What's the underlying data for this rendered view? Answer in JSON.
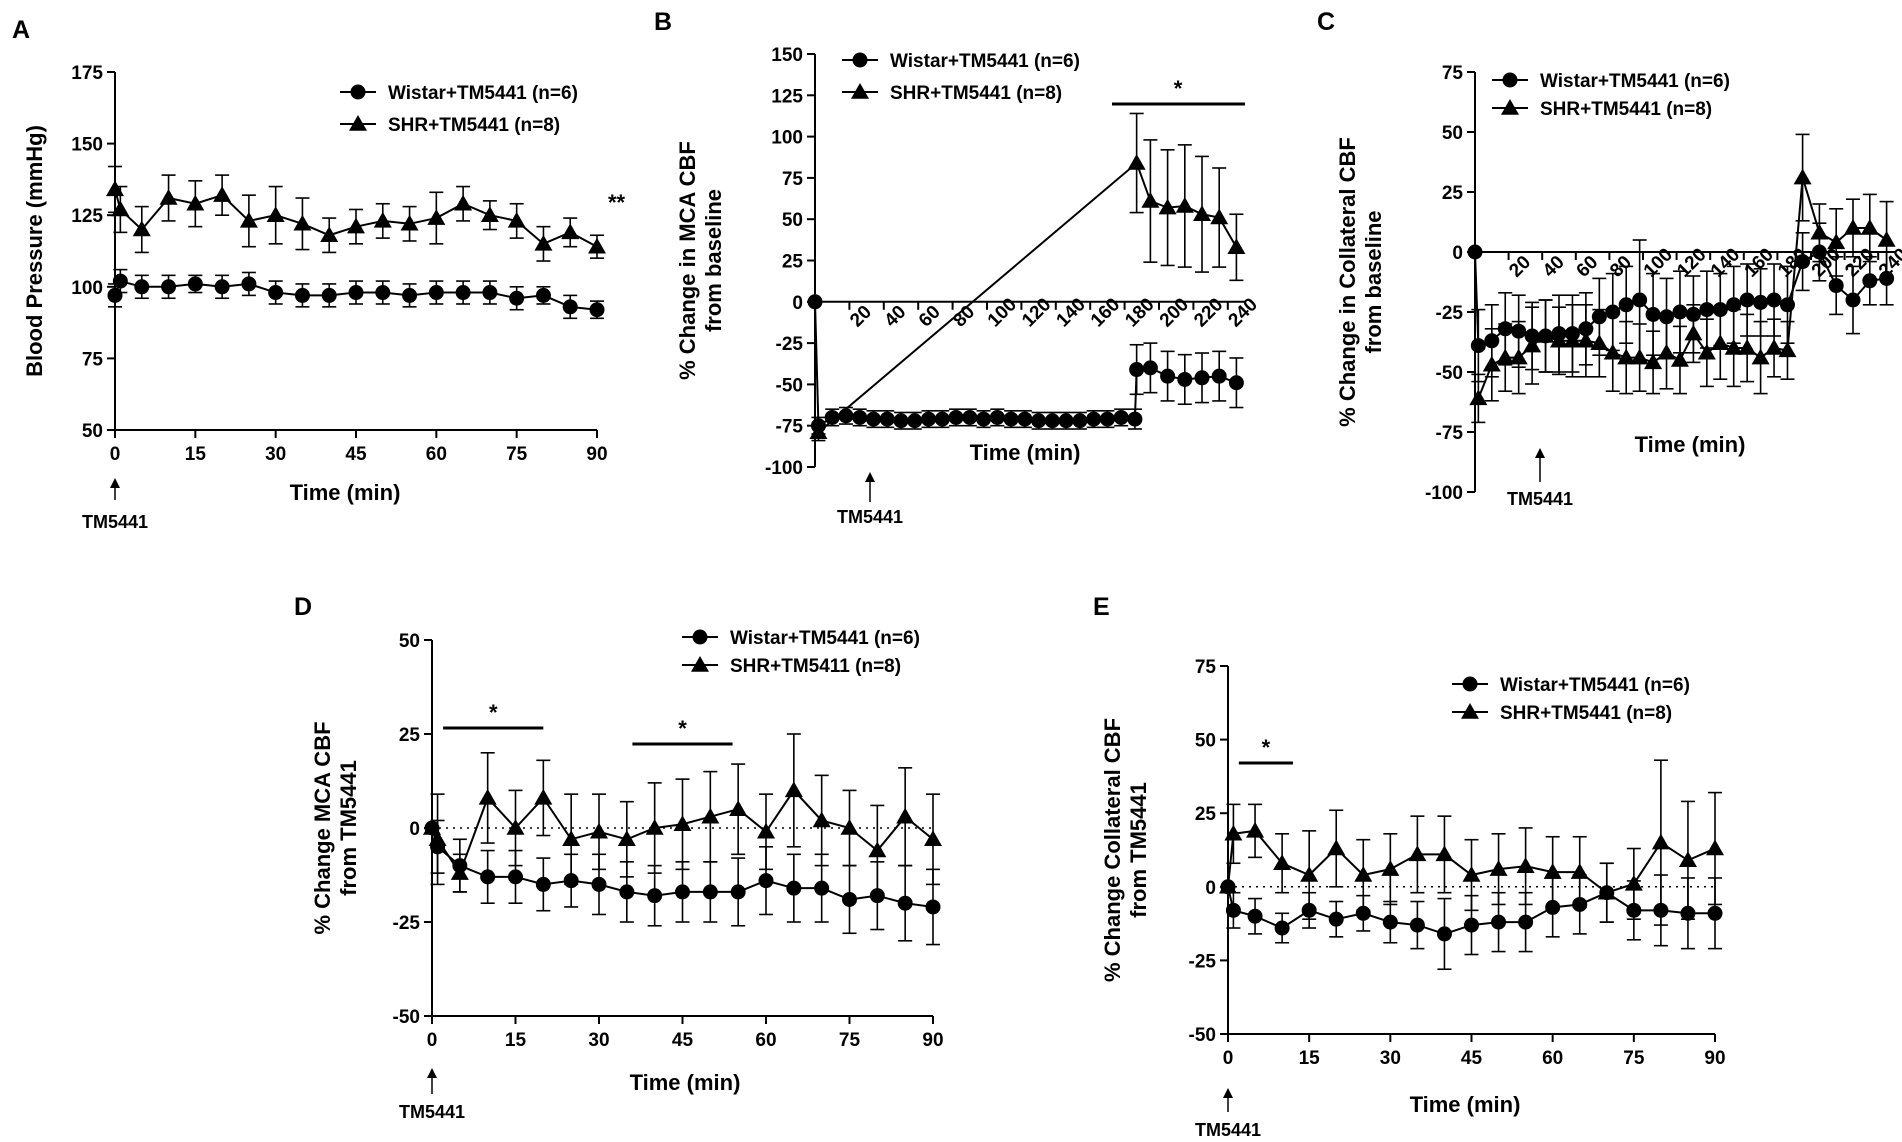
{
  "figure": {
    "panel_letters": [
      "A",
      "B",
      "C",
      "D",
      "E"
    ],
    "marker_names": {
      "circle": "filled-circle",
      "triangle": "filled-triangle"
    }
  },
  "chart_data": [
    {
      "id": "A",
      "type": "line",
      "xlabel": "Time (min)",
      "ylabel": "Blood  Pressure (mmHg)",
      "ylim": [
        50,
        175
      ],
      "yticks": [
        50,
        75,
        100,
        125,
        150,
        175
      ],
      "xlim": [
        0,
        90
      ],
      "xticks": [
        0,
        15,
        30,
        45,
        60,
        75,
        90
      ],
      "arrow_label": "TM5441",
      "significance": "**",
      "legend": "top-right",
      "series": [
        {
          "name": "Wistar+TM5441 (n=6)",
          "marker": "circle",
          "x": [
            0,
            1,
            5,
            10,
            15,
            20,
            25,
            30,
            35,
            40,
            45,
            50,
            55,
            60,
            65,
            70,
            75,
            80,
            85,
            90
          ],
          "y": [
            97,
            102,
            100,
            100,
            101,
            100,
            101,
            98,
            97,
            97,
            98,
            98,
            97,
            98,
            98,
            98,
            96,
            97,
            93,
            92
          ],
          "err": [
            4,
            4,
            4,
            4,
            3,
            4,
            4,
            4,
            4,
            4,
            4,
            4,
            4,
            4,
            4,
            4,
            4,
            3,
            4,
            3
          ]
        },
        {
          "name": "SHR+TM5441 (n=8)",
          "marker": "triangle",
          "x": [
            0,
            1,
            5,
            10,
            15,
            20,
            25,
            30,
            35,
            40,
            45,
            50,
            55,
            60,
            65,
            70,
            75,
            80,
            85,
            90
          ],
          "y": [
            134,
            127,
            120,
            131,
            129,
            132,
            123,
            125,
            122,
            118,
            121,
            123,
            122,
            124,
            129,
            125,
            123,
            115,
            119,
            114
          ],
          "err": [
            8,
            8,
            8,
            8,
            8,
            7,
            9,
            10,
            9,
            6,
            6,
            6,
            6,
            9,
            6,
            5,
            6,
            6,
            5,
            4
          ]
        }
      ]
    },
    {
      "id": "B",
      "type": "line",
      "xlabel": "Time (min)",
      "ylabel_lines": [
        "% Change in  MCA CBF",
        "from baseline"
      ],
      "ylim": [
        -100,
        150
      ],
      "yticks": [
        -100,
        -75,
        -50,
        -25,
        0,
        25,
        50,
        75,
        100,
        125,
        150
      ],
      "xlim": [
        0,
        250
      ],
      "xticks": [
        20,
        40,
        60,
        80,
        100,
        120,
        140,
        160,
        180,
        200,
        220,
        240
      ],
      "arrow_label": "TM5441",
      "significance": "*",
      "legend": "top-left",
      "series": [
        {
          "name": "Wistar+TM5441 (n=6)",
          "marker": "circle",
          "x": [
            0,
            2,
            10,
            18,
            26,
            34,
            42,
            50,
            58,
            66,
            74,
            82,
            90,
            98,
            106,
            114,
            122,
            130,
            138,
            146,
            154,
            162,
            170,
            178,
            186,
            187,
            195,
            205,
            215,
            225,
            235,
            245
          ],
          "y": [
            0,
            -75,
            -70,
            -69,
            -70,
            -71,
            -71,
            -72,
            -72,
            -71,
            -71,
            -70,
            -70,
            -71,
            -70,
            -71,
            -71,
            -72,
            -72,
            -72,
            -72,
            -71,
            -71,
            -70,
            -71,
            -41,
            -40,
            -45,
            -47,
            -46,
            -45,
            -49
          ],
          "err": [
            0,
            5,
            5,
            5,
            5,
            5,
            5,
            5,
            5,
            5,
            5,
            5,
            5,
            5,
            5,
            5,
            5,
            5,
            5,
            5,
            5,
            5,
            5,
            5,
            6,
            15,
            15,
            15,
            15,
            15,
            15,
            15
          ]
        },
        {
          "name": "SHR+TM5441 (n=8)",
          "marker": "triangle",
          "x": [
            2,
            187,
            195,
            205,
            215,
            225,
            235,
            245
          ],
          "y": [
            -79,
            84,
            61,
            57,
            58,
            53,
            51,
            33
          ],
          "err": [
            5,
            30,
            37,
            35,
            37,
            35,
            30,
            20
          ]
        }
      ]
    },
    {
      "id": "C",
      "type": "line",
      "xlabel": "Time (min)",
      "ylabel_lines": [
        "% Change in  Collateral CBF",
        "from baseline"
      ],
      "ylim": [
        -100,
        75
      ],
      "yticks": [
        -100,
        -75,
        -50,
        -25,
        0,
        25,
        50,
        75
      ],
      "xlim": [
        0,
        250
      ],
      "xticks": [
        20,
        40,
        60,
        80,
        100,
        120,
        140,
        160,
        180,
        200,
        220,
        240
      ],
      "arrow_label": "TM5441",
      "legend": "top-left",
      "series": [
        {
          "name": "Wistar+TM5441 (n=6)",
          "marker": "circle",
          "x": [
            0,
            2,
            10,
            18,
            26,
            34,
            42,
            50,
            58,
            66,
            74,
            82,
            90,
            98,
            106,
            114,
            122,
            130,
            138,
            146,
            154,
            162,
            170,
            178,
            186,
            195,
            205,
            215,
            225,
            235,
            245
          ],
          "y": [
            0,
            -39,
            -37,
            -32,
            -33,
            -35,
            -35,
            -34,
            -34,
            -32,
            -27,
            -25,
            -22,
            -20,
            -26,
            -27,
            -25,
            -26,
            -24,
            -24,
            -22,
            -20,
            -21,
            -20,
            -22,
            -4,
            0,
            -14,
            -20,
            -12,
            -11
          ],
          "err": [
            0,
            15,
            15,
            15,
            15,
            14,
            15,
            16,
            16,
            15,
            16,
            16,
            16,
            25,
            17,
            16,
            17,
            16,
            16,
            15,
            16,
            15,
            14,
            15,
            16,
            12,
            12,
            12,
            14,
            10,
            11
          ]
        },
        {
          "name": "SHR+TM5441 (n=8)",
          "marker": "triangle",
          "x": [
            2,
            10,
            18,
            26,
            34,
            42,
            50,
            58,
            66,
            74,
            82,
            90,
            98,
            106,
            114,
            122,
            130,
            138,
            146,
            154,
            162,
            170,
            178,
            186,
            195,
            205,
            215,
            225,
            235,
            245
          ],
          "y": [
            -61,
            -47,
            -44,
            -44,
            -39,
            -35,
            -37,
            -37,
            -37,
            -38,
            -42,
            -44,
            -44,
            -46,
            -42,
            -45,
            -34,
            -42,
            -38,
            -40,
            -40,
            -44,
            -40,
            -41,
            31,
            8,
            4,
            10,
            10,
            5
          ],
          "err": [
            10,
            15,
            14,
            15,
            16,
            15,
            14,
            15,
            15,
            14,
            16,
            15,
            14,
            13,
            15,
            14,
            12,
            14,
            15,
            16,
            14,
            15,
            12,
            12,
            18,
            12,
            14,
            12,
            14,
            16
          ]
        }
      ]
    },
    {
      "id": "D",
      "type": "line",
      "xlabel": "Time (min)",
      "ylabel_lines": [
        "% Change MCA CBF",
        "from TM5441"
      ],
      "ylim": [
        -50,
        50
      ],
      "yticks": [
        -50,
        -25,
        0,
        25,
        50
      ],
      "xlim": [
        0,
        90
      ],
      "xticks": [
        0,
        15,
        30,
        45,
        60,
        75,
        90
      ],
      "arrow_label": "TM5441",
      "significance": [
        "*",
        "*"
      ],
      "significance_ranges": [
        [
          2,
          20
        ],
        [
          36,
          54
        ]
      ],
      "legend": "top-right",
      "series": [
        {
          "name": "Wistar+TM5441 (n=6)",
          "marker": "circle",
          "x": [
            0,
            1,
            5,
            10,
            15,
            20,
            25,
            30,
            35,
            40,
            45,
            50,
            55,
            60,
            65,
            70,
            75,
            80,
            85,
            90
          ],
          "y": [
            0,
            -5,
            -10,
            -13,
            -13,
            -15,
            -14,
            -15,
            -17,
            -18,
            -17,
            -17,
            -17,
            -14,
            -16,
            -16,
            -19,
            -18,
            -20,
            -21
          ],
          "err": [
            0,
            7,
            7,
            7,
            7,
            7,
            7,
            8,
            8,
            8,
            8,
            8,
            9,
            9,
            9,
            9,
            9,
            9,
            10,
            10
          ]
        },
        {
          "name": "SHR+TM5411 (n=8)",
          "marker": "triangle",
          "x": [
            0,
            1,
            5,
            10,
            15,
            20,
            25,
            30,
            35,
            40,
            45,
            50,
            55,
            60,
            65,
            70,
            75,
            80,
            85,
            90
          ],
          "y": [
            0,
            -3,
            -12,
            8,
            0,
            8,
            -3,
            -1,
            -3,
            0,
            1,
            3,
            5,
            -1,
            10,
            2,
            0,
            -6,
            3,
            -3
          ],
          "err": [
            0,
            12,
            5,
            12,
            10,
            10,
            12,
            10,
            10,
            12,
            12,
            12,
            12,
            10,
            15,
            12,
            10,
            12,
            13,
            12
          ]
        }
      ]
    },
    {
      "id": "E",
      "type": "line",
      "xlabel": "Time (min)",
      "ylabel_lines": [
        "% Change Collateral CBF",
        "from TM5441"
      ],
      "ylim": [
        -50,
        75
      ],
      "yticks": [
        -50,
        -25,
        0,
        25,
        50,
        75
      ],
      "xlim": [
        0,
        90
      ],
      "xticks": [
        0,
        15,
        30,
        45,
        60,
        75,
        90
      ],
      "arrow_label": "TM5441",
      "significance": "*",
      "significance_ranges": [
        [
          2,
          12
        ]
      ],
      "legend": "top-right",
      "series": [
        {
          "name": "Wistar+TM5441 (n=6)",
          "marker": "circle",
          "x": [
            0,
            1,
            5,
            10,
            15,
            20,
            25,
            30,
            35,
            40,
            45,
            50,
            55,
            60,
            65,
            70,
            75,
            80,
            85,
            90
          ],
          "y": [
            0,
            -8,
            -10,
            -14,
            -8,
            -11,
            -9,
            -12,
            -13,
            -16,
            -13,
            -12,
            -12,
            -7,
            -6,
            -2,
            -8,
            -8,
            -9,
            -9
          ],
          "err": [
            0,
            6,
            6,
            5,
            6,
            6,
            6,
            7,
            8,
            12,
            10,
            10,
            10,
            10,
            10,
            10,
            10,
            12,
            12,
            12
          ]
        },
        {
          "name": "SHR+TM5441 (n=8)",
          "marker": "triangle",
          "x": [
            0,
            1,
            5,
            10,
            15,
            20,
            25,
            30,
            35,
            40,
            45,
            50,
            55,
            60,
            65,
            70,
            75,
            80,
            85,
            90
          ],
          "y": [
            0,
            18,
            19,
            8,
            4,
            13,
            4,
            6,
            11,
            11,
            4,
            6,
            7,
            5,
            5,
            -2,
            1,
            15,
            9,
            13
          ],
          "err": [
            0,
            10,
            9,
            10,
            15,
            13,
            12,
            12,
            13,
            13,
            12,
            12,
            13,
            12,
            12,
            10,
            12,
            28,
            20,
            19
          ]
        }
      ]
    }
  ]
}
